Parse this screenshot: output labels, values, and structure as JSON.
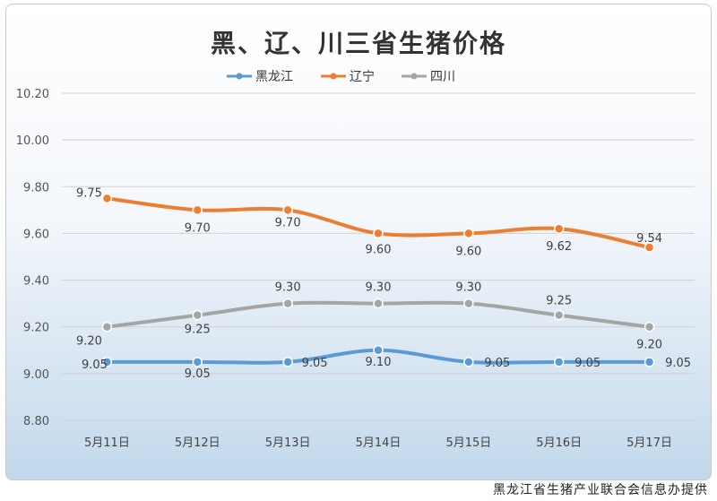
{
  "chart_data": {
    "type": "line",
    "title": "黑、辽、川三省生猪价格",
    "categories": [
      "5月11日",
      "5月12日",
      "5月13日",
      "5月14日",
      "5月15日",
      "5月16日",
      "5月17日"
    ],
    "series": [
      {
        "name": "黑龙江",
        "color": "#5b9bd5",
        "values": [
          9.05,
          9.05,
          9.05,
          9.1,
          9.05,
          9.05,
          9.05
        ],
        "labels": [
          "9.05",
          "9.05",
          "9.05",
          "9.10",
          "9.05",
          "9.05",
          "9.05"
        ]
      },
      {
        "name": "辽宁",
        "color": "#ed7d31",
        "values": [
          9.75,
          9.7,
          9.7,
          9.6,
          9.6,
          9.62,
          9.54
        ],
        "labels": [
          "9.75",
          "9.70",
          "9.70",
          "9.60",
          "9.60",
          "9.62",
          "9.54"
        ]
      },
      {
        "name": "四川",
        "color": "#a5a5a5",
        "values": [
          9.2,
          9.25,
          9.3,
          9.3,
          9.3,
          9.25,
          9.2
        ],
        "labels": [
          "9.20",
          "9.25",
          "9.30",
          "9.30",
          "9.30",
          "9.25",
          "9.20"
        ]
      }
    ],
    "yticks": [
      "8.80",
      "9.00",
      "9.20",
      "9.40",
      "9.60",
      "9.80",
      "10.00",
      "10.20"
    ],
    "ylim": [
      8.8,
      10.2
    ],
    "grid": true,
    "legend_position": "top"
  },
  "source_note": "黑龙江省生猪产业联合会信息办提供"
}
